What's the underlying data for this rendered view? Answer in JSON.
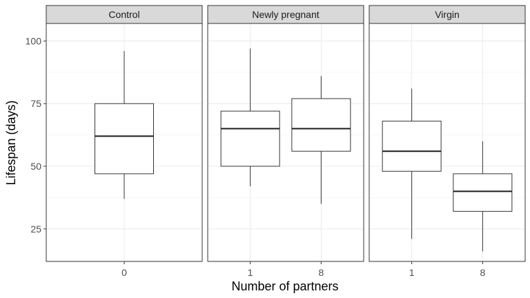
{
  "chart_data": {
    "type": "boxplot",
    "xlabel": "Number of partners",
    "ylabel": "Lifespan (days)",
    "ylim": [
      12,
      107
    ],
    "yticks": [
      25,
      50,
      75,
      100
    ],
    "grid": true,
    "facets": [
      {
        "label": "Control",
        "categories": [
          "0"
        ],
        "boxes": [
          {
            "category": "0",
            "min": 37,
            "q1": 47,
            "median": 62,
            "q3": 75,
            "max": 96
          }
        ]
      },
      {
        "label": "Newly pregnant",
        "categories": [
          "1",
          "8"
        ],
        "boxes": [
          {
            "category": "1",
            "min": 42,
            "q1": 50,
            "median": 65,
            "q3": 72,
            "max": 97
          },
          {
            "category": "8",
            "min": 35,
            "q1": 56,
            "median": 65,
            "q3": 77,
            "max": 86
          }
        ]
      },
      {
        "label": "Virgin",
        "categories": [
          "1",
          "8"
        ],
        "boxes": [
          {
            "category": "1",
            "min": 21,
            "q1": 48,
            "median": 56,
            "q3": 68,
            "max": 81
          },
          {
            "category": "8",
            "min": 16,
            "q1": 32,
            "median": 40,
            "q3": 47,
            "max": 60
          }
        ]
      }
    ]
  }
}
